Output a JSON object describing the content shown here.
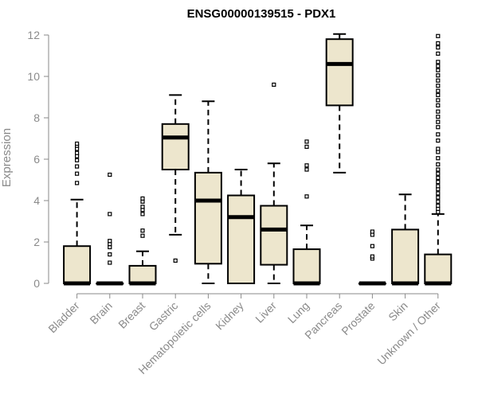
{
  "chart_data": {
    "type": "box",
    "title": "ENSG00000139515 - PDX1",
    "xlabel": "",
    "ylabel": "Expression",
    "ylim": [
      0,
      12
    ],
    "yticks": [
      0,
      2,
      4,
      6,
      8,
      10,
      12
    ],
    "colors": {
      "box_fill": "#EDE6CD",
      "stroke": "#000000",
      "axis": "#8a8a8a"
    },
    "categories": [
      "Bladder",
      "Brain",
      "Breast",
      "Gastric",
      "Hematopoietic cells",
      "Kidney",
      "Liver",
      "Lung",
      "Pancreas",
      "Prostate",
      "Skin",
      "Unknown / Other"
    ],
    "boxes": [
      {
        "q1": 0,
        "median": 0,
        "q3": 1.8,
        "whisker_low": 0,
        "whisker_high": 4.05,
        "outliers": [
          4.85,
          5.3,
          5.65,
          5.95,
          6.15,
          6.3,
          6.5,
          6.65,
          6.75
        ]
      },
      {
        "q1": 0,
        "median": 0,
        "q3": 0,
        "whisker_low": 0,
        "whisker_high": 0,
        "outliers": [
          1.0,
          1.4,
          1.75,
          1.9,
          2.05,
          3.35,
          5.25
        ]
      },
      {
        "q1": 0,
        "median": 0,
        "q3": 0.85,
        "whisker_low": 0,
        "whisker_high": 1.55,
        "outliers": [
          2.3,
          2.55,
          3.35,
          3.55,
          3.7,
          3.95,
          4.1
        ]
      },
      {
        "q1": 5.5,
        "median": 7.05,
        "q3": 7.7,
        "whisker_low": 2.35,
        "whisker_high": 9.1,
        "outliers": [
          1.1
        ]
      },
      {
        "q1": 0.95,
        "median": 4.0,
        "q3": 5.35,
        "whisker_low": 0,
        "whisker_high": 8.8,
        "outliers": []
      },
      {
        "q1": 0,
        "median": 3.2,
        "q3": 4.25,
        "whisker_low": 0,
        "whisker_high": 5.5,
        "outliers": []
      },
      {
        "q1": 0.9,
        "median": 2.6,
        "q3": 3.75,
        "whisker_low": 0,
        "whisker_high": 5.8,
        "outliers": [
          9.6
        ]
      },
      {
        "q1": 0,
        "median": 0,
        "q3": 1.65,
        "whisker_low": 0,
        "whisker_high": 2.8,
        "outliers": [
          4.2,
          5.5,
          5.7,
          6.6,
          6.85
        ]
      },
      {
        "q1": 8.6,
        "median": 10.6,
        "q3": 11.8,
        "whisker_low": 5.35,
        "whisker_high": 12.05,
        "outliers": []
      },
      {
        "q1": 0,
        "median": 0,
        "q3": 0,
        "whisker_low": 0,
        "whisker_high": 0,
        "outliers": [
          1.2,
          1.3,
          1.8,
          2.35,
          2.5
        ]
      },
      {
        "q1": 0,
        "median": 0,
        "q3": 2.6,
        "whisker_low": 0,
        "whisker_high": 4.3,
        "outliers": []
      },
      {
        "q1": 0,
        "median": 0,
        "q3": 1.4,
        "whisker_low": 0,
        "whisker_high": 3.35,
        "outliers": [
          3.45,
          3.6,
          3.75,
          3.95,
          4.15,
          4.35,
          4.55,
          4.7,
          4.9,
          5.1,
          5.3,
          5.5,
          5.75,
          6.05,
          6.35,
          6.5,
          6.9,
          7.2,
          7.55,
          7.8,
          8.05,
          8.3,
          8.6,
          8.85,
          9.1,
          9.3,
          9.55,
          9.8,
          10.05,
          10.3,
          10.5,
          10.7,
          11.1,
          11.4,
          11.6,
          11.95
        ]
      }
    ]
  }
}
